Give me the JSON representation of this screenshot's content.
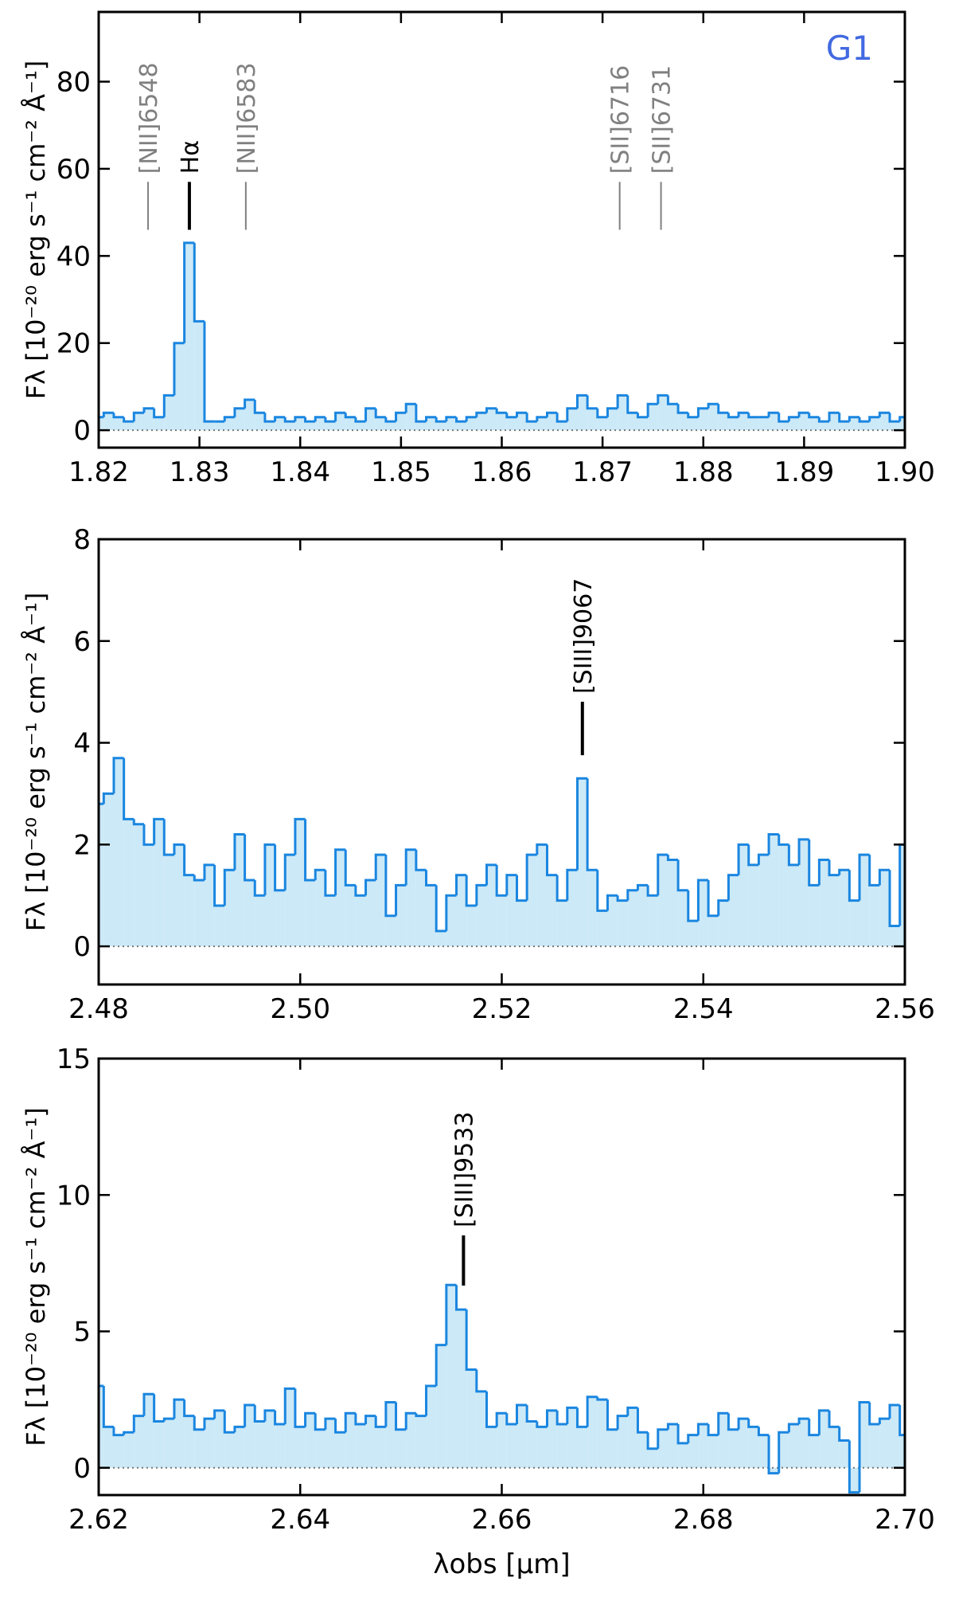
{
  "chart_data": [
    {
      "type": "line",
      "step": true,
      "color": "#1a86e0",
      "fill": "#cce9f7",
      "ylabel": "Fλ [10⁻²⁰ erg s⁻¹ cm⁻² Å⁻¹]",
      "label": {
        "text": "G1",
        "color": "#4169e1"
      },
      "xlim": [
        1.82,
        1.9
      ],
      "ylim": [
        -4,
        96
      ],
      "xticks": [
        1.82,
        1.83,
        1.84,
        1.85,
        1.86,
        1.87,
        1.88,
        1.89,
        {
          "value": 1.9,
          "label": "1.90"
        }
      ],
      "yticks": [
        0,
        20,
        40,
        60,
        80
      ],
      "annotations": [
        {
          "text": "[NII]6548",
          "x": 1.8249,
          "color": "#808080"
        },
        {
          "text": "Hα",
          "x": 1.829,
          "color": "#000000"
        },
        {
          "text": "[NII]6583",
          "x": 1.8346,
          "color": "#808080"
        },
        {
          "text": "[SII]6716",
          "x": 1.8717,
          "color": "#808080"
        },
        {
          "text": "[SII]6731",
          "x": 1.8758,
          "color": "#808080"
        }
      ],
      "x": [
        1.82,
        1.821,
        1.822,
        1.823,
        1.824,
        1.825,
        1.826,
        1.827,
        1.828,
        1.829,
        1.83,
        1.831,
        1.832,
        1.833,
        1.834,
        1.835,
        1.836,
        1.837,
        1.838,
        1.839,
        1.84,
        1.841,
        1.842,
        1.843,
        1.844,
        1.845,
        1.846,
        1.847,
        1.848,
        1.849,
        1.85,
        1.851,
        1.852,
        1.853,
        1.854,
        1.855,
        1.856,
        1.857,
        1.858,
        1.859,
        1.86,
        1.861,
        1.862,
        1.863,
        1.864,
        1.865,
        1.866,
        1.867,
        1.868,
        1.869,
        1.87,
        1.871,
        1.872,
        1.873,
        1.874,
        1.875,
        1.876,
        1.877,
        1.878,
        1.879,
        1.88,
        1.881,
        1.882,
        1.883,
        1.884,
        1.885,
        1.886,
        1.887,
        1.888,
        1.889,
        1.89,
        1.891,
        1.892,
        1.893,
        1.894,
        1.895,
        1.896,
        1.897,
        1.898,
        1.899,
        1.9
      ],
      "values": [
        3,
        4,
        3,
        2,
        4,
        5,
        3,
        8,
        20,
        43,
        25,
        2,
        2,
        3,
        5,
        7,
        4,
        2,
        3,
        2,
        3,
        2,
        3,
        2,
        4,
        3,
        2,
        5,
        3,
        2,
        4,
        6,
        2,
        3,
        2,
        3,
        2,
        3,
        4,
        5,
        4,
        3,
        4,
        2,
        3,
        4,
        2,
        5,
        8,
        5,
        3,
        5,
        8,
        4,
        3,
        6,
        8,
        6,
        4,
        3,
        5,
        6,
        4,
        3,
        4,
        3,
        3,
        4,
        2,
        3,
        4,
        3,
        2,
        4,
        2,
        3,
        2,
        3,
        4,
        2,
        3
      ]
    },
    {
      "type": "line",
      "step": true,
      "color": "#1a86e0",
      "fill": "#cce9f7",
      "ylabel": "Fλ [10⁻²⁰ erg s⁻¹ cm⁻² Å⁻¹]",
      "xlim": [
        2.48,
        2.56
      ],
      "ylim": [
        -0.75,
        8
      ],
      "xticks": [
        2.48,
        {
          "value": 2.5,
          "label": "2.50"
        },
        2.52,
        2.54,
        2.56
      ],
      "yticks": [
        0,
        2,
        4,
        6,
        8
      ],
      "annotations": [
        {
          "text": "[SIII]9067",
          "x": 2.528,
          "color": "#000000"
        }
      ],
      "x": [
        2.48,
        2.481,
        2.482,
        2.483,
        2.484,
        2.485,
        2.486,
        2.487,
        2.488,
        2.489,
        2.49,
        2.491,
        2.492,
        2.493,
        2.494,
        2.495,
        2.496,
        2.497,
        2.498,
        2.499,
        2.5,
        2.501,
        2.502,
        2.503,
        2.504,
        2.505,
        2.506,
        2.507,
        2.508,
        2.509,
        2.51,
        2.511,
        2.512,
        2.513,
        2.514,
        2.515,
        2.516,
        2.517,
        2.518,
        2.519,
        2.52,
        2.521,
        2.522,
        2.523,
        2.524,
        2.525,
        2.526,
        2.527,
        2.528,
        2.529,
        2.53,
        2.531,
        2.532,
        2.533,
        2.534,
        2.535,
        2.536,
        2.537,
        2.538,
        2.539,
        2.54,
        2.541,
        2.542,
        2.543,
        2.544,
        2.545,
        2.546,
        2.547,
        2.548,
        2.549,
        2.55,
        2.551,
        2.552,
        2.553,
        2.554,
        2.555,
        2.556,
        2.557,
        2.558,
        2.559,
        2.56
      ],
      "values": [
        2.8,
        3.0,
        3.7,
        2.5,
        2.4,
        2.0,
        2.5,
        1.8,
        2.0,
        1.4,
        1.3,
        1.6,
        0.8,
        1.5,
        2.2,
        1.3,
        1.0,
        2.0,
        1.1,
        1.8,
        2.5,
        1.3,
        1.5,
        1.0,
        1.9,
        1.2,
        1.0,
        1.3,
        1.8,
        0.6,
        1.2,
        1.9,
        1.5,
        1.2,
        0.3,
        1.0,
        1.4,
        0.8,
        1.2,
        1.6,
        1.0,
        1.4,
        0.9,
        1.8,
        2.0,
        1.4,
        0.9,
        1.5,
        3.3,
        1.5,
        0.7,
        1.0,
        0.9,
        1.1,
        1.2,
        1.0,
        1.8,
        1.7,
        1.1,
        0.5,
        1.3,
        0.6,
        0.9,
        1.4,
        2.0,
        1.6,
        1.8,
        2.2,
        2.0,
        1.6,
        2.1,
        1.2,
        1.7,
        1.4,
        1.5,
        0.9,
        1.8,
        1.2,
        1.5,
        0.4,
        2.0
      ]
    },
    {
      "type": "line",
      "step": true,
      "color": "#1a86e0",
      "fill": "#cce9f7",
      "ylabel": "Fλ [10⁻²⁰ erg s⁻¹ cm⁻² Å⁻¹]",
      "xlabel": "λobs [μm]",
      "xlim": [
        2.62,
        2.7
      ],
      "ylim": [
        -1,
        15
      ],
      "xticks": [
        2.62,
        2.64,
        2.66,
        2.68,
        {
          "value": 2.7,
          "label": "2.70"
        }
      ],
      "yticks": [
        0,
        5,
        10,
        15
      ],
      "annotations": [
        {
          "text": "[SIII]9533",
          "x": 2.6562,
          "color": "#000000"
        }
      ],
      "x": [
        2.62,
        2.621,
        2.622,
        2.623,
        2.624,
        2.625,
        2.626,
        2.627,
        2.628,
        2.629,
        2.63,
        2.631,
        2.632,
        2.633,
        2.634,
        2.635,
        2.636,
        2.637,
        2.638,
        2.639,
        2.64,
        2.641,
        2.642,
        2.643,
        2.644,
        2.645,
        2.646,
        2.647,
        2.648,
        2.649,
        2.65,
        2.651,
        2.652,
        2.653,
        2.654,
        2.655,
        2.656,
        2.657,
        2.658,
        2.659,
        2.66,
        2.661,
        2.662,
        2.663,
        2.664,
        2.665,
        2.666,
        2.667,
        2.668,
        2.669,
        2.67,
        2.671,
        2.672,
        2.673,
        2.674,
        2.675,
        2.676,
        2.677,
        2.678,
        2.679,
        2.68,
        2.681,
        2.682,
        2.683,
        2.684,
        2.685,
        2.686,
        2.687,
        2.688,
        2.689,
        2.69,
        2.691,
        2.692,
        2.693,
        2.694,
        2.695,
        2.696,
        2.697,
        2.698,
        2.699,
        2.7
      ],
      "values": [
        3.0,
        1.5,
        1.2,
        1.3,
        1.9,
        2.7,
        1.7,
        1.8,
        2.5,
        1.9,
        1.4,
        1.8,
        2.1,
        1.3,
        1.5,
        2.3,
        1.7,
        2.1,
        1.6,
        2.9,
        1.5,
        2.0,
        1.4,
        1.8,
        1.3,
        2.0,
        1.6,
        1.9,
        1.5,
        2.4,
        1.4,
        2.0,
        1.9,
        3.0,
        4.5,
        6.7,
        5.8,
        3.6,
        2.8,
        1.5,
        2.0,
        1.6,
        2.3,
        1.7,
        1.5,
        2.1,
        1.6,
        2.2,
        1.5,
        2.6,
        2.5,
        1.4,
        1.9,
        2.2,
        1.3,
        0.7,
        1.4,
        1.6,
        0.9,
        1.2,
        1.6,
        1.2,
        2.0,
        1.4,
        1.8,
        1.5,
        1.2,
        -0.2,
        1.3,
        1.6,
        1.8,
        1.2,
        2.1,
        1.5,
        1.0,
        -0.9,
        2.4,
        1.6,
        1.8,
        2.3,
        1.2
      ]
    }
  ]
}
